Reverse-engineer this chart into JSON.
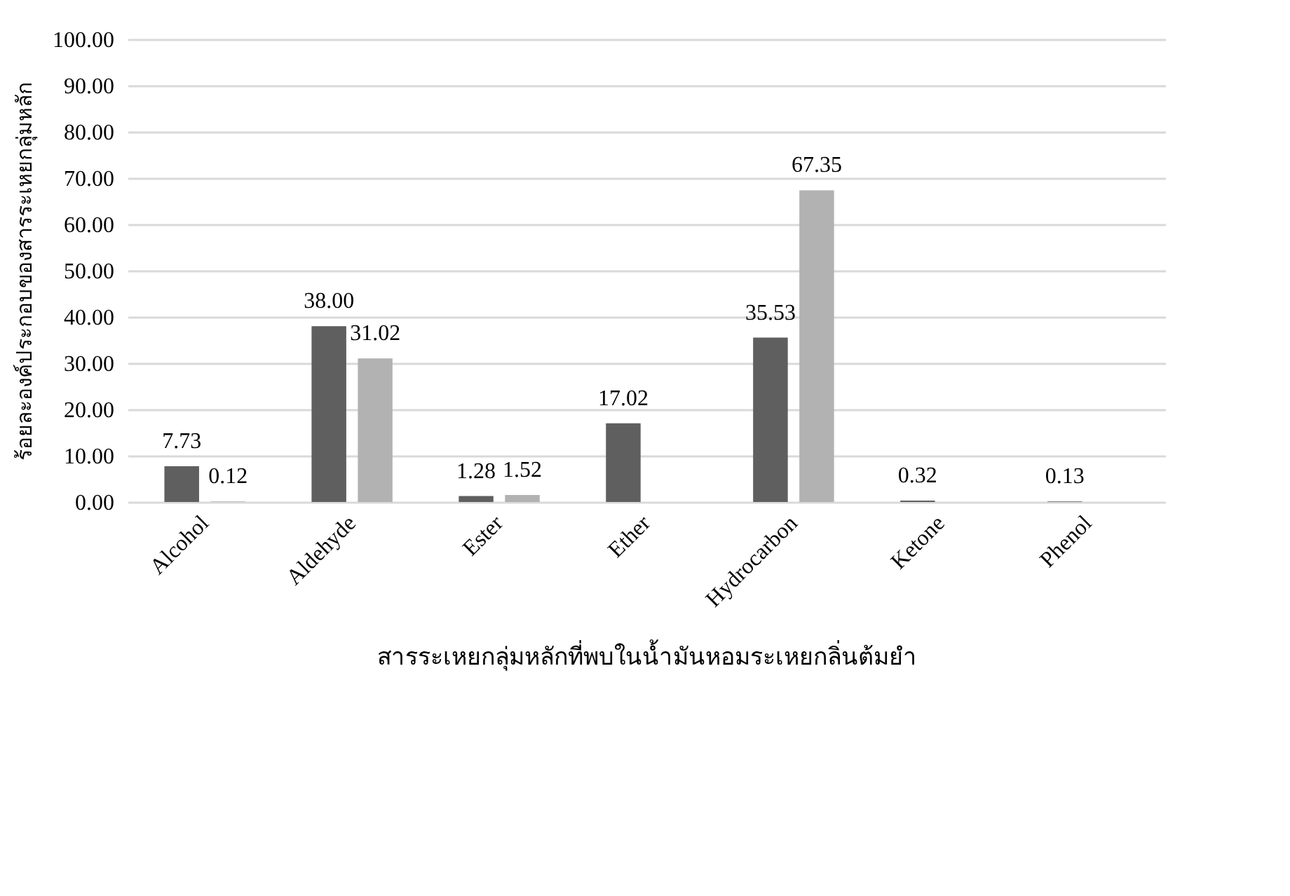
{
  "chart_data": {
    "type": "bar",
    "xlabel": "สารระเหยกลุ่มหลักที่พบในน้ำมันหอมระเหยกลิ่นต้มยำ",
    "ylabel": "ร้อยละองค์ประกอบของสารระเหยกลุ่มหลัก",
    "categories": [
      "Alcohol",
      "Aldehyde",
      "Ester",
      "Ether",
      "Hydrocarbon",
      "Ketone",
      "Phenol"
    ],
    "series": [
      {
        "color": "#5f5f5f",
        "values": [
          7.73,
          38.0,
          1.28,
          17.02,
          35.53,
          0.32,
          0.13
        ],
        "value_labels": [
          "7.73",
          "38.00",
          "1.28",
          "17.02",
          "35.53",
          "0.32",
          "0.13"
        ]
      },
      {
        "color": "#b2b2b2",
        "values": [
          0.12,
          31.02,
          1.52,
          null,
          67.35,
          null,
          null
        ],
        "value_labels": [
          "0.12",
          "31.02",
          "1.52",
          null,
          "67.35",
          null,
          null
        ]
      }
    ],
    "ylim": [
      0,
      100
    ],
    "yticks": [
      {
        "value": 0,
        "label": "0.00"
      },
      {
        "value": 10,
        "label": "10.00"
      },
      {
        "value": 20,
        "label": "20.00"
      },
      {
        "value": 30,
        "label": "30.00"
      },
      {
        "value": 40,
        "label": "40.00"
      },
      {
        "value": 50,
        "label": "50.00"
      },
      {
        "value": 60,
        "label": "60.00"
      },
      {
        "value": 70,
        "label": "70.00"
      },
      {
        "value": 80,
        "label": "80.00"
      },
      {
        "value": 90,
        "label": "90.00"
      },
      {
        "value": 100,
        "label": "100.00"
      }
    ],
    "grid": "y",
    "legend": false
  }
}
